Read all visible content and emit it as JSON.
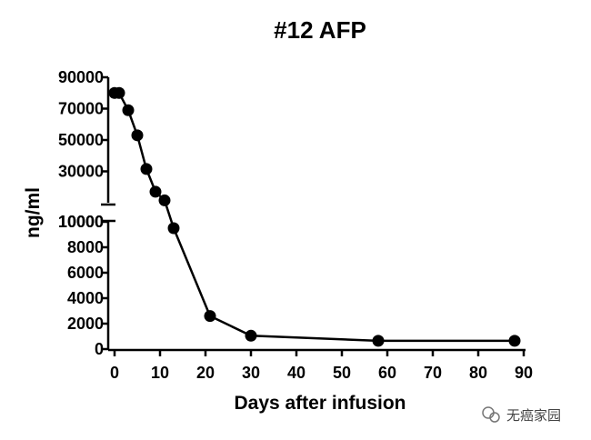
{
  "chart_data": {
    "type": "line",
    "title": "#12 AFP",
    "xlabel": "Days after infusion",
    "ylabel": "ng/ml",
    "xlim": [
      0,
      90
    ],
    "x_ticks": [
      "0",
      "10",
      "20",
      "30",
      "40",
      "50",
      "60",
      "70",
      "80",
      "90"
    ],
    "y_segments": [
      {
        "range": [
          0,
          10000
        ],
        "ticks": [
          "0",
          "2000",
          "4000",
          "6000",
          "8000",
          "10000"
        ]
      },
      {
        "range": [
          10000,
          90000
        ],
        "ticks": [
          "10000",
          "30000",
          "50000",
          "70000",
          "90000"
        ]
      }
    ],
    "grid": false,
    "series": [
      {
        "x": [
          0,
          1,
          3,
          5,
          7,
          9,
          11,
          13,
          21,
          30,
          58,
          88
        ],
        "y": [
          80000,
          80000,
          69000,
          53000,
          31500,
          17000,
          11500,
          9500,
          2600,
          1050,
          650,
          650
        ]
      }
    ]
  },
  "watermark": {
    "icon": "wechat-icon",
    "text": "无癌家园"
  }
}
